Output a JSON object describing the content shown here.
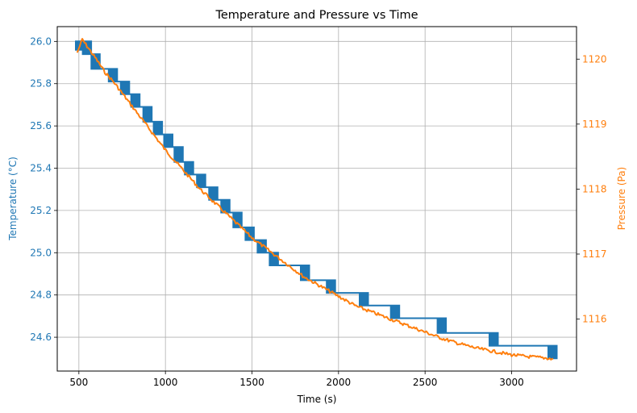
{
  "chart_data": {
    "type": "line",
    "title": "Temperature and Pressure vs Time",
    "xlabel": "Time (s)",
    "ylabel_left": "Temperature (°C)",
    "ylabel_right": "Pressure (Pa)",
    "xlim": [
      375,
      3375
    ],
    "ylim_left": [
      24.44,
      26.07
    ],
    "ylim_right": [
      1115.2,
      1120.5
    ],
    "x_ticks": [
      "500",
      "1000",
      "1500",
      "2000",
      "2500",
      "3000"
    ],
    "y_left_ticks": [
      "24.6",
      "24.8",
      "25.0",
      "25.2",
      "25.4",
      "25.6",
      "25.8",
      "26.0"
    ],
    "y_right_ticks": [
      "1116",
      "1117",
      "1118",
      "1119",
      "1120"
    ],
    "grid": true,
    "colors": {
      "temperature": "#1f77b4",
      "pressure": "#ff7f0e"
    },
    "series": [
      {
        "axis": "left",
        "x": [
          490,
          510,
          550,
          600,
          650,
          700,
          770,
          830,
          900,
          960,
          1020,
          1080,
          1140,
          1210,
          1280,
          1350,
          1420,
          1490,
          1560,
          1630,
          1720,
          1810,
          1960,
          2150,
          2330,
          2600,
          2900,
          3240
        ],
        "values": [
          25.96,
          26.0,
          25.94,
          25.87,
          25.87,
          25.81,
          25.75,
          25.69,
          25.62,
          25.56,
          25.5,
          25.43,
          25.37,
          25.31,
          25.25,
          25.19,
          25.12,
          25.06,
          25.0,
          24.94,
          24.94,
          24.87,
          24.81,
          24.75,
          24.69,
          24.62,
          24.56,
          24.5
        ]
      },
      {
        "axis": "right",
        "x": [
          490,
          520,
          560,
          600,
          650,
          700,
          800,
          900,
          1000,
          1100,
          1200,
          1300,
          1400,
          1500,
          1600,
          1700,
          1800,
          1900,
          2000,
          2100,
          2200,
          2300,
          2400,
          2500,
          2600,
          2700,
          2800,
          2900,
          3000,
          3100,
          3200,
          3240
        ],
        "values": [
          1120.1,
          1120.3,
          1120.15,
          1120.0,
          1119.8,
          1119.65,
          1119.3,
          1118.95,
          1118.6,
          1118.3,
          1118.0,
          1117.75,
          1117.5,
          1117.25,
          1117.05,
          1116.85,
          1116.65,
          1116.5,
          1116.35,
          1116.2,
          1116.1,
          1116.0,
          1115.9,
          1115.8,
          1115.7,
          1115.62,
          1115.55,
          1115.5,
          1115.45,
          1115.42,
          1115.4,
          1115.38
        ]
      }
    ]
  }
}
